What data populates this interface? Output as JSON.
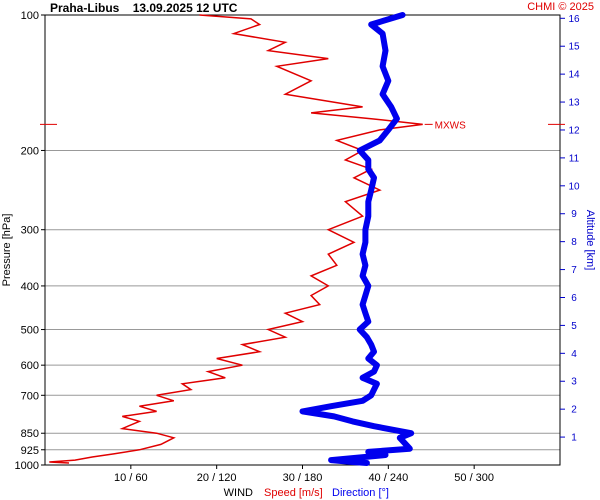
{
  "header": {
    "station": "Praha-Libus",
    "datetime": "13.09.2025 12 UTC",
    "copyright": "CHMI © 2025"
  },
  "colors": {
    "speed": "#e00000",
    "direction": "#0000ee",
    "grid": "#999999",
    "altitude_axis": "#0000cc"
  },
  "chart_data": {
    "type": "line",
    "title": "",
    "xlabel": "WIND",
    "xlabel_speed": "Speed [m/s]",
    "xlabel_direction": "Direction [°]",
    "ylabel": "Pressure [hPa]",
    "y2label": "Altitude [km]",
    "y_scale": "log",
    "ylim": [
      1000,
      100
    ],
    "xlim_speed": [
      0,
      60
    ],
    "xlim_direction": [
      0,
      360
    ],
    "y_ticks": [
      100,
      200,
      300,
      400,
      500,
      600,
      700,
      850,
      925,
      1000
    ],
    "x_ticks": [
      "10 / 60",
      "20 / 120",
      "30 / 180",
      "40 / 240",
      "50 / 300"
    ],
    "altitude_ticks": [
      1,
      2,
      3,
      4,
      5,
      6,
      7,
      8,
      9,
      10,
      11,
      12,
      13,
      14,
      15,
      16
    ],
    "mxws_label": "MXWS",
    "mxws_pressure": 175,
    "series": [
      {
        "name": "Speed [m/s]",
        "points": [
          [
            2.8,
            990
          ],
          [
            0.5,
            985
          ],
          [
            3.5,
            975
          ],
          [
            5.5,
            960
          ],
          [
            8,
            945
          ],
          [
            11,
            925
          ],
          [
            13.5,
            900
          ],
          [
            15,
            870
          ],
          [
            13,
            850
          ],
          [
            9,
            830
          ],
          [
            11,
            800
          ],
          [
            9,
            780
          ],
          [
            13,
            760
          ],
          [
            11,
            740
          ],
          [
            15,
            720
          ],
          [
            13,
            700
          ],
          [
            17,
            680
          ],
          [
            16,
            660
          ],
          [
            21,
            640
          ],
          [
            19,
            620
          ],
          [
            23,
            600
          ],
          [
            20,
            580
          ],
          [
            25,
            560
          ],
          [
            23,
            540
          ],
          [
            28,
            520
          ],
          [
            26,
            500
          ],
          [
            30,
            480
          ],
          [
            28,
            460
          ],
          [
            32,
            440
          ],
          [
            31,
            420
          ],
          [
            33,
            400
          ],
          [
            31,
            380
          ],
          [
            34,
            360
          ],
          [
            33,
            340
          ],
          [
            36,
            320
          ],
          [
            33,
            300
          ],
          [
            37,
            280
          ],
          [
            35,
            260
          ],
          [
            39,
            245
          ],
          [
            36,
            230
          ],
          [
            38,
            220
          ],
          [
            35,
            210
          ],
          [
            37,
            200
          ],
          [
            34,
            190
          ],
          [
            39,
            180
          ],
          [
            44,
            175
          ],
          [
            38,
            170
          ],
          [
            31,
            165
          ],
          [
            37,
            160
          ],
          [
            28,
            150
          ],
          [
            31,
            140
          ],
          [
            27,
            130
          ],
          [
            33,
            125
          ],
          [
            26,
            120
          ],
          [
            28,
            115
          ],
          [
            22,
            110
          ],
          [
            25,
            105
          ],
          [
            24,
            102
          ],
          [
            18,
            100
          ]
        ]
      },
      {
        "name": "Direction [°]",
        "points": [
          [
            225,
            990
          ],
          [
            215,
            985
          ],
          [
            200,
            975
          ],
          [
            216,
            965
          ],
          [
            238,
            950
          ],
          [
            226,
            935
          ],
          [
            255,
            920
          ],
          [
            248,
            870
          ],
          [
            256,
            850
          ],
          [
            230,
            820
          ],
          [
            215,
            800
          ],
          [
            202,
            780
          ],
          [
            180,
            760
          ],
          [
            200,
            740
          ],
          [
            222,
            720
          ],
          [
            228,
            700
          ],
          [
            230,
            680
          ],
          [
            232,
            660
          ],
          [
            222,
            640
          ],
          [
            230,
            620
          ],
          [
            232,
            600
          ],
          [
            226,
            580
          ],
          [
            230,
            560
          ],
          [
            228,
            540
          ],
          [
            225,
            520
          ],
          [
            220,
            500
          ],
          [
            226,
            480
          ],
          [
            224,
            460
          ],
          [
            222,
            440
          ],
          [
            224,
            420
          ],
          [
            226,
            400
          ],
          [
            222,
            380
          ],
          [
            224,
            360
          ],
          [
            222,
            340
          ],
          [
            224,
            320
          ],
          [
            224,
            300
          ],
          [
            226,
            280
          ],
          [
            226,
            260
          ],
          [
            228,
            245
          ],
          [
            230,
            230
          ],
          [
            226,
            220
          ],
          [
            226,
            210
          ],
          [
            220,
            200
          ],
          [
            234,
            190
          ],
          [
            240,
            180
          ],
          [
            246,
            170
          ],
          [
            242,
            160
          ],
          [
            236,
            150
          ],
          [
            240,
            140
          ],
          [
            236,
            130
          ],
          [
            238,
            120
          ],
          [
            236,
            110
          ],
          [
            228,
            105
          ],
          [
            250,
            100
          ]
        ]
      }
    ]
  }
}
